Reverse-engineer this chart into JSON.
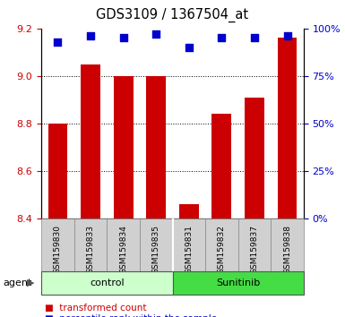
{
  "title": "GDS3109 / 1367504_at",
  "samples": [
    "GSM159830",
    "GSM159833",
    "GSM159834",
    "GSM159835",
    "GSM159831",
    "GSM159832",
    "GSM159837",
    "GSM159838"
  ],
  "bar_values": [
    8.8,
    9.05,
    9.0,
    9.0,
    8.46,
    8.84,
    8.91,
    9.16
  ],
  "dot_values": [
    93,
    96,
    95,
    97,
    90,
    95,
    95,
    96
  ],
  "ylim_left": [
    8.4,
    9.2
  ],
  "ylim_right": [
    0,
    100
  ],
  "yticks_left": [
    8.4,
    8.6,
    8.8,
    9.0,
    9.2
  ],
  "yticks_right": [
    0,
    25,
    50,
    75,
    100
  ],
  "bar_color": "#cc0000",
  "dot_color": "#0000cc",
  "bar_width": 0.6,
  "groups": [
    {
      "label": "control",
      "indices": [
        0,
        1,
        2,
        3
      ],
      "color": "#ccffcc"
    },
    {
      "label": "Sunitinib",
      "indices": [
        4,
        5,
        6,
        7
      ],
      "color": "#44dd44"
    }
  ],
  "group_row_label": "agent",
  "tick_label_color_left": "#cc0000",
  "tick_label_color_right": "#0000cc"
}
